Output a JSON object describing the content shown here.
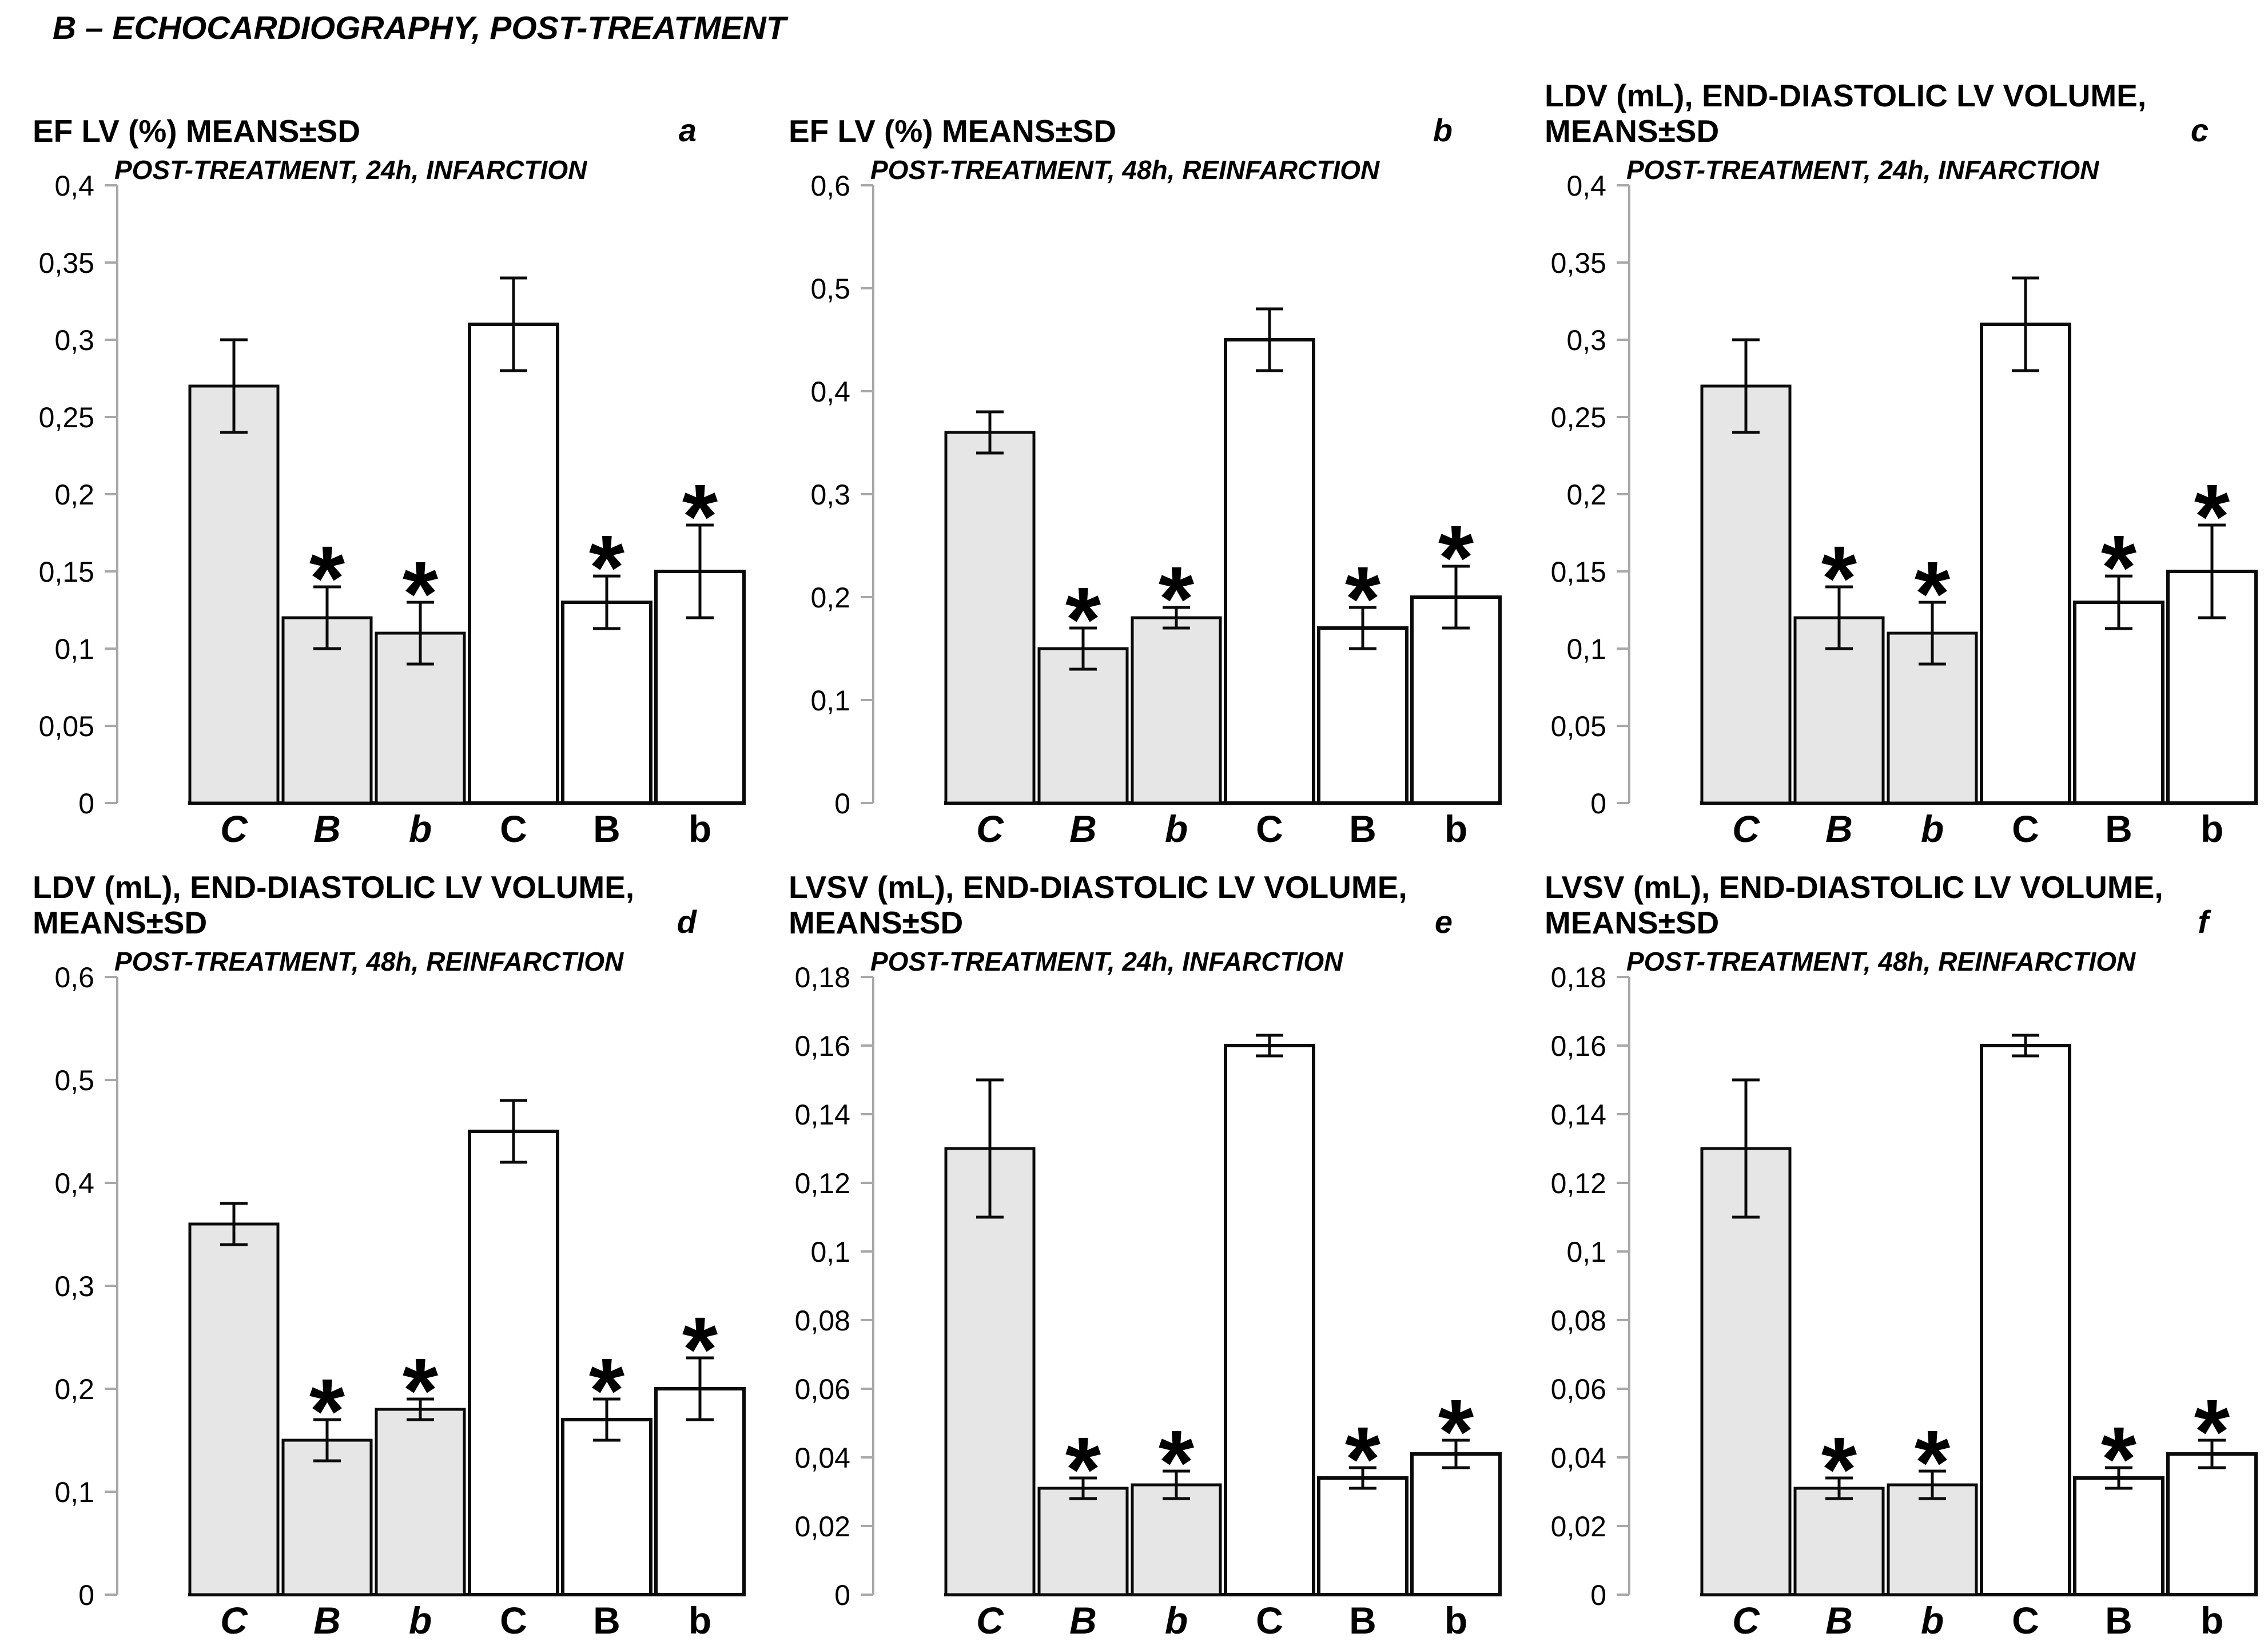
{
  "header": {
    "title": "B – ECHOCARDIOGRAPHY, POST-TREATMENT"
  },
  "colors": {
    "shaded_bar_fill": "#e6e6e6",
    "open_bar_fill": "#ffffff",
    "bar_stroke": "#0a0a0a",
    "axis_color": "#a8a8a8",
    "text_color": "#000000"
  },
  "chart_data": [
    {
      "type": "bar",
      "panel_label": "a",
      "title": "EF LV (%) MEANS±SD",
      "subtitle": "POST-TREATMENT, 24h, INFARCTION",
      "categories": [
        "C",
        "B",
        "b",
        "C",
        "B",
        "b"
      ],
      "group_split": 3,
      "values": [
        0.27,
        0.12,
        0.11,
        0.31,
        0.13,
        0.15
      ],
      "errors": [
        0.03,
        0.02,
        0.02,
        0.03,
        0.017,
        0.03
      ],
      "significant": [
        false,
        true,
        true,
        false,
        true,
        true
      ],
      "bar_styles": [
        "shaded",
        "shaded",
        "shaded",
        "open",
        "open",
        "open"
      ],
      "ylim": [
        0,
        0.4
      ],
      "yticks": [
        0,
        0.05,
        0.1,
        0.15,
        0.2,
        0.25,
        0.3,
        0.35,
        0.4
      ],
      "ytick_labels": [
        "0",
        "0,05",
        "0,1",
        "0,15",
        "0,2",
        "0,25",
        "0,3",
        "0,35",
        "0,4"
      ],
      "grid": false,
      "legend": "none"
    },
    {
      "type": "bar",
      "panel_label": "b",
      "title": "EF LV (%) MEANS±SD",
      "subtitle": "POST-TREATMENT, 48h, REINFARCTION",
      "categories": [
        "C",
        "B",
        "b",
        "C",
        "B",
        "b"
      ],
      "group_split": 3,
      "values": [
        0.36,
        0.15,
        0.18,
        0.45,
        0.17,
        0.2
      ],
      "errors": [
        0.02,
        0.02,
        0.01,
        0.03,
        0.02,
        0.03
      ],
      "significant": [
        false,
        true,
        true,
        false,
        true,
        true
      ],
      "bar_styles": [
        "shaded",
        "shaded",
        "shaded",
        "open",
        "open",
        "open"
      ],
      "ylim": [
        0,
        0.6
      ],
      "yticks": [
        0,
        0.1,
        0.2,
        0.3,
        0.4,
        0.5,
        0.6
      ],
      "ytick_labels": [
        "0",
        "0,1",
        "0,2",
        "0,3",
        "0,4",
        "0,5",
        "0,6"
      ],
      "grid": false,
      "legend": "none"
    },
    {
      "type": "bar",
      "panel_label": "c",
      "title": "LDV (mL), END-DIASTOLIC LV VOLUME, MEANS±SD",
      "subtitle": "POST-TREATMENT, 24h, INFARCTION",
      "categories": [
        "C",
        "B",
        "b",
        "C",
        "B",
        "b"
      ],
      "group_split": 3,
      "values": [
        0.27,
        0.12,
        0.11,
        0.31,
        0.13,
        0.15
      ],
      "errors": [
        0.03,
        0.02,
        0.02,
        0.03,
        0.017,
        0.03
      ],
      "significant": [
        false,
        true,
        true,
        false,
        true,
        true
      ],
      "bar_styles": [
        "shaded",
        "shaded",
        "shaded",
        "open",
        "open",
        "open"
      ],
      "ylim": [
        0,
        0.4
      ],
      "yticks": [
        0,
        0.05,
        0.1,
        0.15,
        0.2,
        0.25,
        0.3,
        0.35,
        0.4
      ],
      "ytick_labels": [
        "0",
        "0,05",
        "0,1",
        "0,15",
        "0,2",
        "0,25",
        "0,3",
        "0,35",
        "0,4"
      ],
      "grid": false,
      "legend": "none"
    },
    {
      "type": "bar",
      "panel_label": "d",
      "title": "LDV (mL), END-DIASTOLIC LV VOLUME, MEANS±SD",
      "subtitle": "POST-TREATMENT, 48h, REINFARCTION",
      "categories": [
        "C",
        "B",
        "b",
        "C",
        "B",
        "b"
      ],
      "group_split": 3,
      "values": [
        0.36,
        0.15,
        0.18,
        0.45,
        0.17,
        0.2
      ],
      "errors": [
        0.02,
        0.02,
        0.01,
        0.03,
        0.02,
        0.03
      ],
      "significant": [
        false,
        true,
        true,
        false,
        true,
        true
      ],
      "bar_styles": [
        "shaded",
        "shaded",
        "shaded",
        "open",
        "open",
        "open"
      ],
      "ylim": [
        0,
        0.6
      ],
      "yticks": [
        0,
        0.1,
        0.2,
        0.3,
        0.4,
        0.5,
        0.6
      ],
      "ytick_labels": [
        "0",
        "0,1",
        "0,2",
        "0,3",
        "0,4",
        "0,5",
        "0,6"
      ],
      "grid": false,
      "legend": "none"
    },
    {
      "type": "bar",
      "panel_label": "e",
      "title": "LVSV (mL), END-DIASTOLIC LV VOLUME, MEANS±SD",
      "subtitle": "POST-TREATMENT, 24h, INFARCTION",
      "categories": [
        "C",
        "B",
        "b",
        "C",
        "B",
        "b"
      ],
      "group_split": 3,
      "values": [
        0.13,
        0.031,
        0.032,
        0.16,
        0.034,
        0.041
      ],
      "errors": [
        0.02,
        0.003,
        0.004,
        0.003,
        0.003,
        0.004
      ],
      "significant": [
        false,
        true,
        true,
        false,
        true,
        true
      ],
      "bar_styles": [
        "shaded",
        "shaded",
        "shaded",
        "open",
        "open",
        "open"
      ],
      "ylim": [
        0,
        0.18
      ],
      "yticks": [
        0,
        0.02,
        0.04,
        0.06,
        0.08,
        0.1,
        0.12,
        0.14,
        0.16,
        0.18
      ],
      "ytick_labels": [
        "0",
        "0,02",
        "0,04",
        "0,06",
        "0,08",
        "0,1",
        "0,12",
        "0,14",
        "0,16",
        "0,18"
      ],
      "grid": false,
      "legend": "none"
    },
    {
      "type": "bar",
      "panel_label": "f",
      "title": "LVSV (mL), END-DIASTOLIC LV VOLUME, MEANS±SD",
      "subtitle": "POST-TREATMENT, 48h, REINFARCTION",
      "categories": [
        "C",
        "B",
        "b",
        "C",
        "B",
        "b"
      ],
      "group_split": 3,
      "values": [
        0.13,
        0.031,
        0.032,
        0.16,
        0.034,
        0.041
      ],
      "errors": [
        0.02,
        0.003,
        0.004,
        0.003,
        0.003,
        0.004
      ],
      "significant": [
        false,
        true,
        true,
        false,
        true,
        true
      ],
      "bar_styles": [
        "shaded",
        "shaded",
        "shaded",
        "open",
        "open",
        "open"
      ],
      "ylim": [
        0,
        0.18
      ],
      "yticks": [
        0,
        0.02,
        0.04,
        0.06,
        0.08,
        0.1,
        0.12,
        0.14,
        0.16,
        0.18
      ],
      "ytick_labels": [
        "0",
        "0,02",
        "0,04",
        "0,06",
        "0,08",
        "0,1",
        "0,12",
        "0,14",
        "0,16",
        "0,18"
      ],
      "grid": false,
      "legend": "none"
    }
  ]
}
